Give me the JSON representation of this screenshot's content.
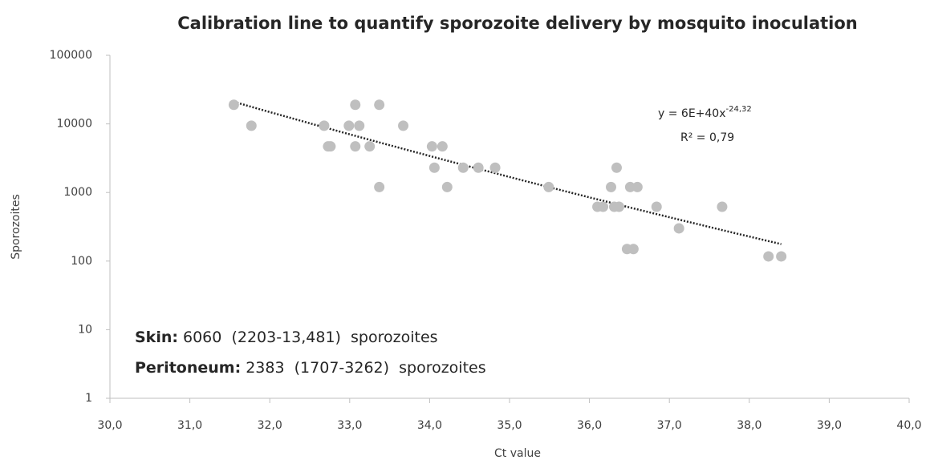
{
  "chart_data": {
    "type": "scatter",
    "title": "Calibration line to quantify sporozoite delivery by mosquito inoculation",
    "x_label": "Ct value",
    "y_label": "Sporozoites",
    "color": "#bfbfbf",
    "log_y": true,
    "grid": false,
    "xlim": [
      30,
      40
    ],
    "ylim": [
      1,
      100000
    ],
    "xticks": [
      {
        "value": 30,
        "label": "30,0"
      },
      {
        "value": 31,
        "label": "31,0"
      },
      {
        "value": 32,
        "label": "32,0"
      },
      {
        "value": 33,
        "label": "33,0"
      },
      {
        "value": 34,
        "label": "34,0"
      },
      {
        "value": 35,
        "label": "35,0"
      },
      {
        "value": 36,
        "label": "36,0"
      },
      {
        "value": 37,
        "label": "37,0"
      },
      {
        "value": 38,
        "label": "38,0"
      },
      {
        "value": 39,
        "label": "39,0"
      },
      {
        "value": 40,
        "label": "40,0"
      }
    ],
    "yticks": [
      1,
      10,
      100,
      1000,
      10000,
      100000
    ],
    "x": [
      31.55,
      31.77,
      32.68,
      32.73,
      32.76,
      32.99,
      33.07,
      33.07,
      33.12,
      33.25,
      33.37,
      33.37,
      33.67,
      34.03,
      34.06,
      34.16,
      34.22,
      34.42,
      34.61,
      34.82,
      35.49,
      36.1,
      36.17,
      36.27,
      36.31,
      36.34,
      36.37,
      36.51,
      36.47,
      36.55,
      36.6,
      36.84,
      37.12,
      37.66,
      38.24,
      38.4
    ],
    "values": [
      19000,
      9400,
      9400,
      4700,
      4700,
      9400,
      19000,
      4700,
      9400,
      4700,
      19000,
      1200,
      9400,
      4700,
      2300,
      4700,
      1200,
      2300,
      2300,
      2300,
      1200,
      620,
      620,
      1200,
      620,
      2300,
      620,
      1200,
      150,
      150,
      1200,
      620,
      300,
      620,
      117,
      117
    ],
    "trendline": {
      "equation": "y = 6E+40x",
      "exponent": "-24,32",
      "r2": "R² = 0,79",
      "a": 6e+40,
      "b": -24.32
    },
    "annotations": [
      {
        "bold": "Skin:",
        "text": " 6060  (2203-13,481)  sporozoites"
      },
      {
        "bold": "Peritoneum:",
        "text": " 2383  (1707-3262)  sporozoites"
      }
    ]
  }
}
